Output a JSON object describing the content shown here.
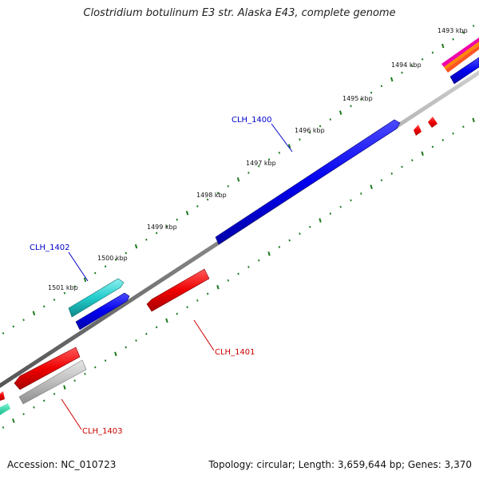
{
  "title": "Clostridium botulinum E3 str. Alaska E43, complete genome",
  "footer": {
    "accession": "Accession: NC_010723",
    "summary": "Topology: circular; Length: 3,659,644 bp; Genes: 3,370"
  },
  "ruler": {
    "labels": [
      "1493 kbp",
      "1494 kbp",
      "1495 kbp",
      "1496 kbp",
      "1497 kbp",
      "1498 kbp",
      "1499 kbp",
      "1500 kbp",
      "1501 kbp"
    ],
    "tick_color": "#1a7a1a"
  },
  "backbone_color": "#8a8a8a",
  "genes": [
    {
      "label": "CLH_1400",
      "strand": "forward",
      "color": "#0000ee",
      "label_color": "#0000cc"
    },
    {
      "label": "CLH_1401",
      "strand": "reverse",
      "color": "#ee0000",
      "label_color": "#cc0000"
    },
    {
      "label": "CLH_1402",
      "strand": "forward",
      "color": "#22cccc",
      "label_color": "#0000cc"
    },
    {
      "label": "CLH_1403",
      "strand": "reverse",
      "color": "#ee0000",
      "label_color": "#cc0000"
    }
  ],
  "other_feature_colors": [
    "#0000ee",
    "#ee0000",
    "#aaaaaa",
    "#22ddaa",
    "#ff8800",
    "#ee00aa"
  ]
}
